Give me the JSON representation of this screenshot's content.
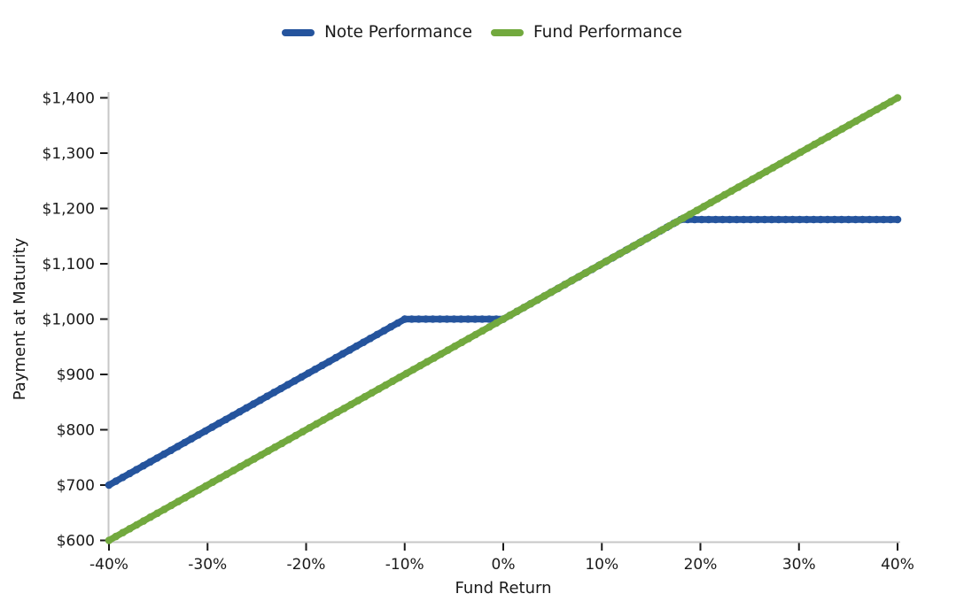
{
  "figure": {
    "background": "#ffffff",
    "text_color": "#1a1a1a",
    "spine_color": "#c7c7c7",
    "tick_color": "#1a1a1a"
  },
  "chart_data": {
    "type": "line",
    "title": "",
    "xlabel": "Fund Return",
    "ylabel": "Payment at Maturity",
    "xlim": [
      -40,
      40
    ],
    "ylim": [
      600,
      1400
    ],
    "grid": false,
    "legend_position": "top-center",
    "x_ticks": [
      {
        "value": -40,
        "label": "-40%"
      },
      {
        "value": -30,
        "label": "-30%"
      },
      {
        "value": -20,
        "label": "-20%"
      },
      {
        "value": -10,
        "label": "-10%"
      },
      {
        "value": 0,
        "label": "0%"
      },
      {
        "value": 10,
        "label": "10%"
      },
      {
        "value": 20,
        "label": "20%"
      },
      {
        "value": 30,
        "label": "30%"
      },
      {
        "value": 40,
        "label": "40%"
      }
    ],
    "y_ticks": [
      {
        "value": 600,
        "label": "$600"
      },
      {
        "value": 700,
        "label": "$700"
      },
      {
        "value": 800,
        "label": "$800"
      },
      {
        "value": 900,
        "label": "$900"
      },
      {
        "value": 1000,
        "label": "$1,000"
      },
      {
        "value": 1100,
        "label": "$1,100"
      },
      {
        "value": 1200,
        "label": "$1,200"
      },
      {
        "value": 1300,
        "label": "$1,300"
      },
      {
        "value": 1400,
        "label": "$1,400"
      }
    ],
    "series": [
      {
        "name": "Note Performance",
        "color": "#25549d",
        "points": [
          [
            -40,
            700
          ],
          [
            -10,
            1000
          ],
          [
            0,
            1000
          ],
          [
            18,
            1180
          ],
          [
            40,
            1180
          ]
        ]
      },
      {
        "name": "Fund Performance",
        "color": "#72a93e",
        "points": [
          [
            -40,
            600
          ],
          [
            40,
            1400
          ]
        ]
      }
    ]
  }
}
